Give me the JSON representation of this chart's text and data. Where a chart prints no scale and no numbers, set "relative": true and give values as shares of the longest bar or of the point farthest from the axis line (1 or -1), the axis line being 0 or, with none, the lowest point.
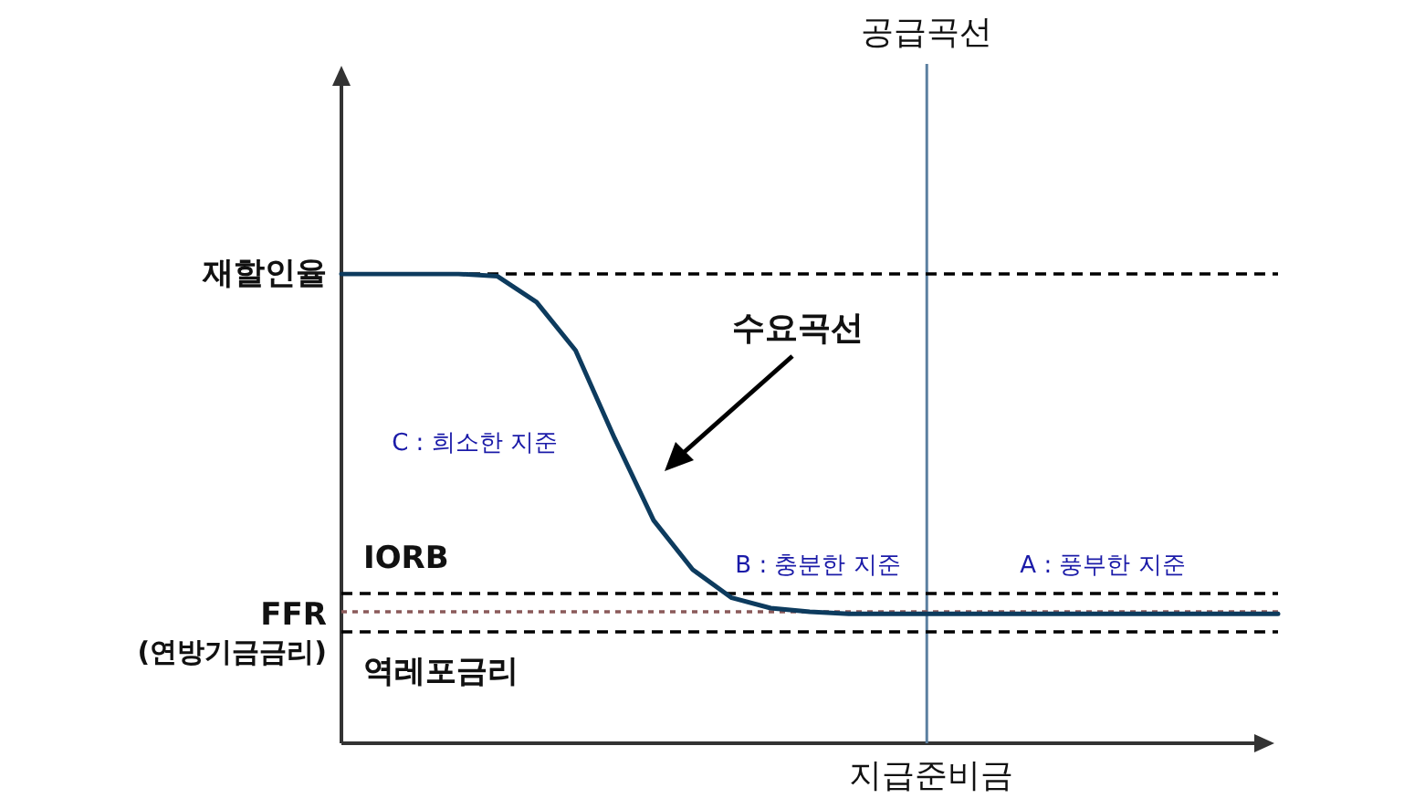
{
  "chart_data": {
    "type": "line",
    "relative": true,
    "xlabel": "지급준비금",
    "categories": [
      null,
      null,
      null,
      null,
      null,
      null,
      null,
      null,
      null,
      null,
      null,
      null,
      null,
      null,
      null,
      null,
      null,
      null,
      null,
      null,
      null,
      null,
      null,
      null,
      null
    ],
    "series": [
      {
        "color": "#0d3b5e",
        "values": [
          1,
          1,
          1,
          1,
          0.995,
          0.94,
          0.837,
          0.65,
          0.475,
          0.37,
          0.31,
          0.288,
          0.28,
          0.276,
          0.276,
          0.276,
          0.276,
          0.276,
          0.276,
          0.276,
          0.276,
          0.276,
          0.276,
          0.276,
          0.276
        ]
      }
    ],
    "ref_lines": [
      {
        "axis": "y",
        "value": 1,
        "label": "재할인율",
        "color": "#000000",
        "line_style": "dashed"
      },
      {
        "axis": "y",
        "value": 0.323,
        "label": "IORB",
        "color": "#000000",
        "line_style": "dashed"
      },
      {
        "axis": "y",
        "value": 0.28,
        "label": "FFR\n(연방기금금리)",
        "color": "#8a5a5a",
        "line_style": "dotted"
      },
      {
        "axis": "y",
        "value": 0.237,
        "label": "역레포금리",
        "color": "#000000",
        "line_style": "dashed"
      }
    ],
    "annotations": [
      "수요곡선",
      "C : 희소한 지준",
      "B : 충분한 지준",
      "A : 풍부한 지준",
      "공급곡선"
    ],
    "marker": "none",
    "line_style": "solid",
    "grid": false
  }
}
